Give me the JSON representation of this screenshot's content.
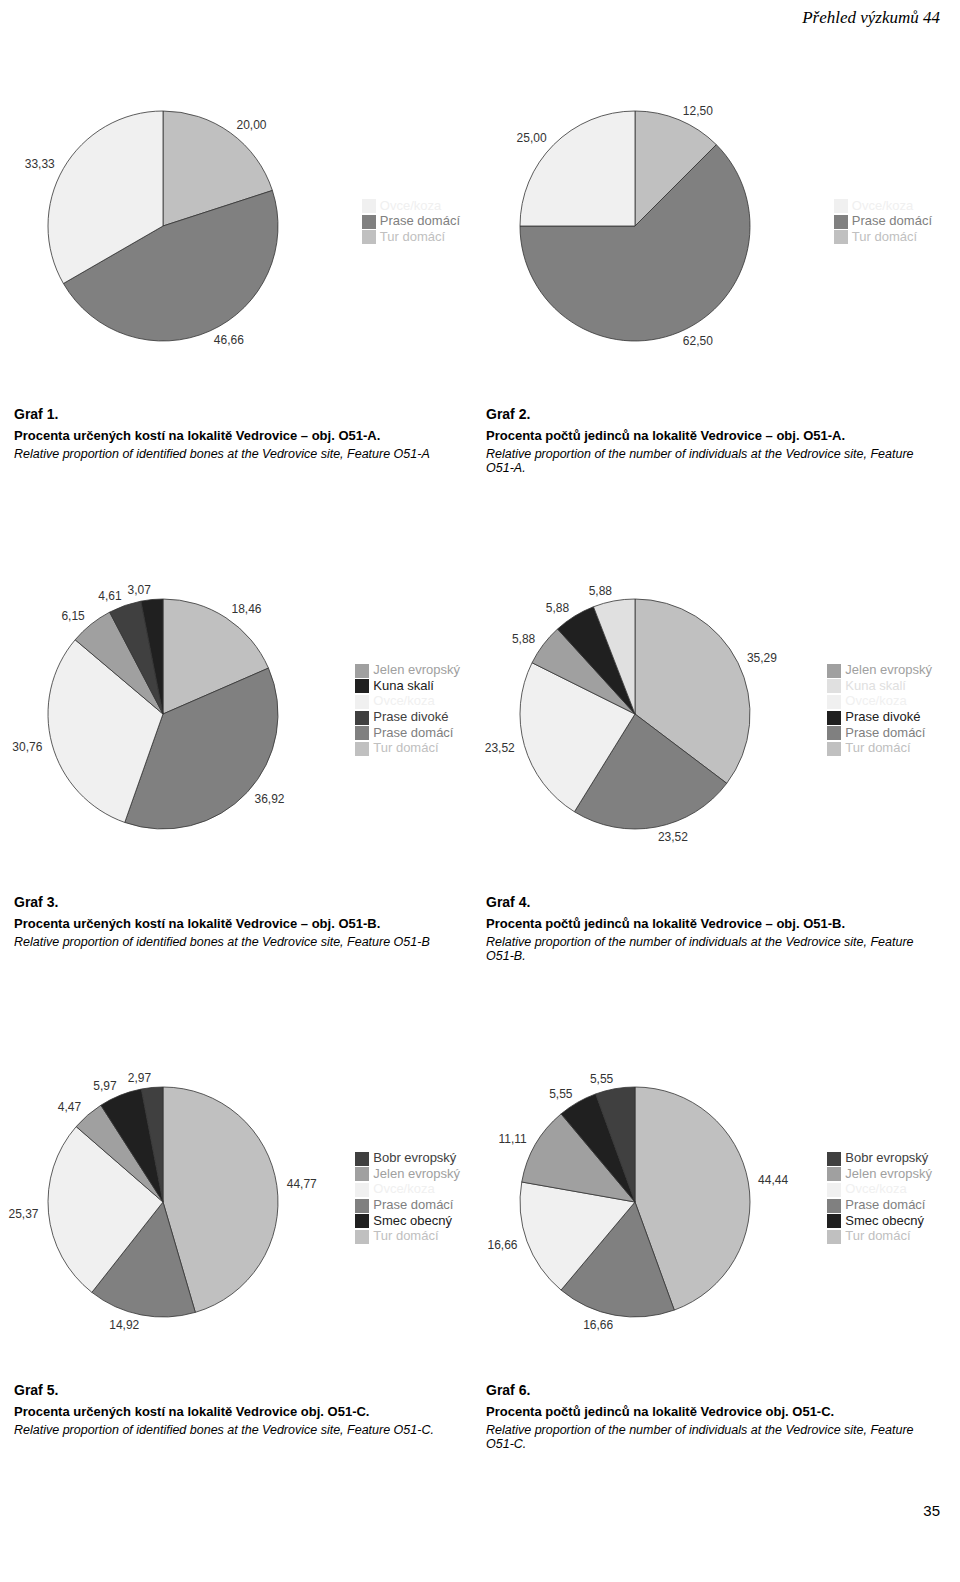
{
  "annotations": [
    "Přehled výzkumů 44",
    "35"
  ],
  "chart_data": [
    {
      "type": "pie",
      "title": "Graf 1.",
      "subtitle": "Procenta určených kostí na lokalitě Vedrovice – obj. O51-A.",
      "annotations": [
        "Relative proportion of identified bones at the Vedrovice site, Feature O51-A"
      ],
      "categories": [
        "Tur domácí",
        "Prase domácí",
        "Ovce/koza"
      ],
      "values": [
        20.0,
        46.66,
        33.33
      ],
      "value_labels": [
        "20,00",
        "46,66",
        "33,33"
      ],
      "colors": [
        "#c0c0c0",
        "#808080",
        "#f0f0f0"
      ],
      "data_labels": true,
      "legend": "right"
    },
    {
      "type": "pie",
      "title": "Graf 2.",
      "subtitle": "Procenta počtů jedinců na lokalitě Vedrovice – obj. O51-A.",
      "annotations": [
        "Relative proportion of the number of individuals at the Vedrovice site, Feature O51-A."
      ],
      "categories": [
        "Tur domácí",
        "Prase domácí",
        "Ovce/koza"
      ],
      "values": [
        12.5,
        62.5,
        25.0
      ],
      "value_labels": [
        "12,50",
        "62,50",
        "25,00"
      ],
      "colors": [
        "#c0c0c0",
        "#808080",
        "#f0f0f0"
      ],
      "data_labels": true,
      "legend": "right"
    },
    {
      "type": "pie",
      "title": "Graf 3.",
      "subtitle": "Procenta určených kostí na lokalitě Vedrovice – obj. O51-B.",
      "annotations": [
        "Relative proportion of identified bones at the Vedrovice site, Feature O51-B"
      ],
      "categories": [
        "Tur domácí",
        "Prase domácí",
        "Ovce/koza",
        "Jelen evropský",
        "Prase divoké",
        "Kuna skalí"
      ],
      "values": [
        18.46,
        36.92,
        30.76,
        6.15,
        4.61,
        3.07
      ],
      "value_labels": [
        "18,46",
        "36,92",
        "30,76",
        "6,15",
        "4,61",
        "3,07"
      ],
      "colors": [
        "#c0c0c0",
        "#808080",
        "#f0f0f0",
        "#a0a0a0",
        "#404040",
        "#202020"
      ],
      "data_labels": true,
      "legend": "right"
    },
    {
      "type": "pie",
      "title": "Graf 4.",
      "subtitle": "Procenta počtů jedinců na lokalitě Vedrovice – obj. O51-B.",
      "annotations": [
        "Relative proportion of the number of individuals at the Vedrovice site, Feature O51-B."
      ],
      "categories": [
        "Tur domácí",
        "Prase domácí",
        "Ovce/koza",
        "Jelen evropský",
        "Prase divoké",
        "Kuna skalí"
      ],
      "values": [
        35.29,
        23.52,
        23.52,
        5.88,
        5.88,
        5.88
      ],
      "value_labels": [
        "35,29",
        "23,52",
        "23,52",
        "5,88",
        "5,88",
        "5,88"
      ],
      "colors": [
        "#c0c0c0",
        "#808080",
        "#f0f0f0",
        "#a0a0a0",
        "#202020",
        "#e0e0e0"
      ],
      "data_labels": true,
      "legend": "right"
    },
    {
      "type": "pie",
      "title": "Graf 5.",
      "subtitle": "Procenta určených kostí na lokalitě Vedrovice obj. O51-C.",
      "annotations": [
        "Relative proportion of identified bones at the Vedrovice site, Feature O51-C."
      ],
      "categories": [
        "Tur domácí",
        "Prase domácí",
        "Ovce/koza",
        "Jelen evropský",
        "Smec obecný",
        "Bobr evropský"
      ],
      "values": [
        44.77,
        14.92,
        25.37,
        4.47,
        5.97,
        2.97
      ],
      "value_labels": [
        "44,77",
        "14,92",
        "25,37",
        "4,47",
        "5,97",
        "2,97"
      ],
      "colors": [
        "#c0c0c0",
        "#808080",
        "#f0f0f0",
        "#a0a0a0",
        "#202020",
        "#404040"
      ],
      "data_labels": true,
      "legend": "right"
    },
    {
      "type": "pie",
      "title": "Graf 6.",
      "subtitle": "Procenta počtů jedinců na lokalitě Vedrovice obj. O51-C.",
      "annotations": [
        "Relative proportion of the number of individuals at the Vedrovice site, Feature O51-C."
      ],
      "categories": [
        "Tur domácí",
        "Prase domácí",
        "Ovce/koza",
        "Jelen evropský",
        "Smec obecný",
        "Bobr evropský"
      ],
      "values": [
        44.44,
        16.66,
        16.66,
        11.11,
        5.55,
        5.55
      ],
      "value_labels": [
        "44,44",
        "16,66",
        "16,66",
        "11,11",
        "5,55",
        "5,55"
      ],
      "colors": [
        "#c0c0c0",
        "#808080",
        "#f0f0f0",
        "#a0a0a0",
        "#202020",
        "#404040"
      ],
      "data_labels": true,
      "legend": "right"
    }
  ]
}
